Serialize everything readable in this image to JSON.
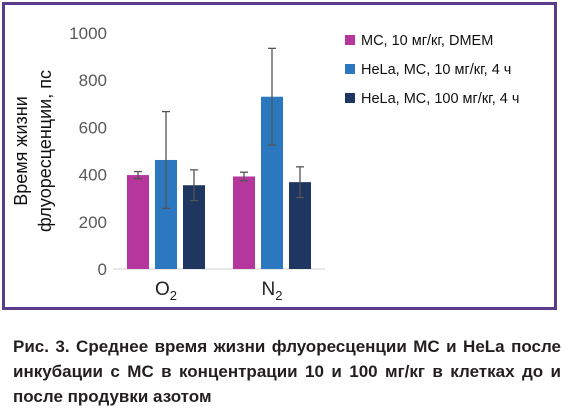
{
  "chart_data": {
    "type": "bar",
    "title": "",
    "ylabel_lines": [
      "Время жизни",
      "флуоресценции, пс"
    ],
    "xlabel": "",
    "ylim": [
      0,
      1000
    ],
    "yticks": [
      0,
      200,
      400,
      600,
      800,
      1000
    ],
    "grid": false,
    "legend_position": "top-right",
    "categories": [
      {
        "base": "O",
        "sub": "2"
      },
      {
        "base": "N",
        "sub": "2"
      }
    ],
    "series": [
      {
        "name": "МС, 10 мг/кг, DMEM",
        "color": "#b5369c",
        "values": [
          398,
          392
        ],
        "errors": [
          15,
          18
        ]
      },
      {
        "name": "HeLa, МС, 10 мг/кг, 4 ч",
        "color": "#2b78c0",
        "values": [
          462,
          730
        ],
        "errors": [
          205,
          205
        ]
      },
      {
        "name": "HeLa, МС, 100 мг/кг, 4 ч",
        "color": "#1f3660",
        "values": [
          355,
          368
        ],
        "errors": [
          65,
          65
        ]
      }
    ]
  },
  "caption": "Рис. 3. Среднее время жизни флуоресценции МС и HeLa после инкубации с МС в концентрации 10 и 100 мг/кг в клетках до и после продувки азотом"
}
